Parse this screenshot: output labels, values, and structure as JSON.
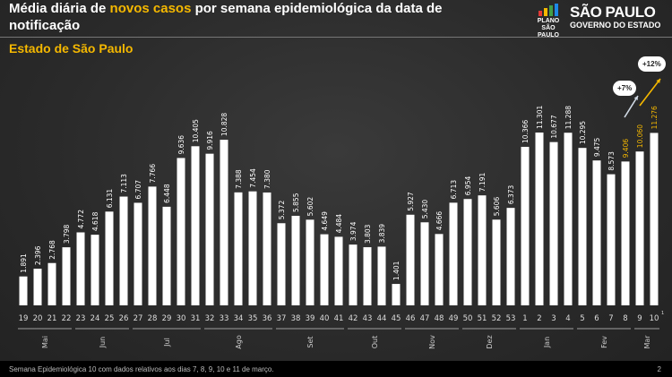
{
  "header": {
    "title_part1": "Média diária de ",
    "title_highlight": "novos casos",
    "title_part2": " por semana epidemiológica da data de notificação",
    "subtitle": "Estado de São Paulo",
    "logo_plano": "PLANO SÃO PAULO",
    "logo_sp": "SÃO PAULO",
    "logo_gov": "GOVERNO DO ESTADO"
  },
  "footer": {
    "note": "Semana Epidemiológica 10 com dados relativos aos dias 7, 8, 9, 10 e 11 de março.",
    "page": "2"
  },
  "colors": {
    "bar": "#ffffff",
    "highlight": "#f5b800"
  },
  "chart_data": {
    "type": "bar",
    "title": "Média diária de novos casos por semana epidemiológica da data de notificação",
    "subtitle": "Estado de São Paulo",
    "categories": [
      "19",
      "20",
      "21",
      "22",
      "23",
      "24",
      "25",
      "26",
      "27",
      "28",
      "29",
      "30",
      "31",
      "32",
      "33",
      "34",
      "35",
      "36",
      "37",
      "38",
      "39",
      "40",
      "41",
      "42",
      "43",
      "44",
      "45",
      "46",
      "47",
      "48",
      "49",
      "50",
      "51",
      "52",
      "53",
      "1",
      "2",
      "3",
      "4",
      "5",
      "6",
      "7",
      "8",
      "9",
      "10"
    ],
    "values": [
      1891,
      2396,
      2768,
      3798,
      4772,
      4618,
      6131,
      7113,
      6707,
      7766,
      6448,
      9636,
      10405,
      9916,
      10828,
      7388,
      7454,
      7380,
      5372,
      5855,
      5602,
      4649,
      4484,
      3974,
      3803,
      3839,
      1401,
      5927,
      5430,
      4666,
      6713,
      6954,
      7191,
      5606,
      6373,
      10366,
      11301,
      10677,
      11288,
      10295,
      9475,
      8573,
      9406,
      10060,
      11276
    ],
    "labels": [
      "1.891",
      "2.396",
      "2.768",
      "3.798",
      "4.772",
      "4.618",
      "6.131",
      "7.113",
      "6.707",
      "7.766",
      "6.448",
      "9.636",
      "10.405",
      "9.916",
      "10.828",
      "7.388",
      "7.454",
      "7.380",
      "5.372",
      "5.855",
      "5.602",
      "4.649",
      "4.484",
      "3.974",
      "3.803",
      "3.839",
      "1.401",
      "5.927",
      "5.430",
      "4.666",
      "6.713",
      "6.954",
      "7.191",
      "5.606",
      "6.373",
      "10.366",
      "11.301",
      "10.677",
      "11.288",
      "10.295",
      "9.475",
      "8.573",
      "9.406",
      "10.060",
      "11.276"
    ],
    "highlighted_labels": [
      42,
      43,
      44
    ],
    "last_tick_superscript": "1",
    "months": [
      {
        "label": "Mai",
        "count": 4
      },
      {
        "label": "Jun",
        "count": 4
      },
      {
        "label": "Jul",
        "count": 5
      },
      {
        "label": "Ago",
        "count": 5
      },
      {
        "label": "Set",
        "count": 5
      },
      {
        "label": "Out",
        "count": 4
      },
      {
        "label": "Nov",
        "count": 4
      },
      {
        "label": "Dez",
        "count": 4
      },
      {
        "label": "Jan",
        "count": 4
      },
      {
        "label": "Fev",
        "count": 4
      },
      {
        "label": "Mar",
        "count": 2
      }
    ],
    "annotations": [
      {
        "text": "+7%",
        "from_index": 42,
        "to_index": 43
      },
      {
        "text": "+12%",
        "from_index": 43,
        "to_index": 44
      }
    ],
    "ylim": [
      0,
      12000
    ],
    "grid": false,
    "xlabel": "",
    "ylabel": ""
  }
}
